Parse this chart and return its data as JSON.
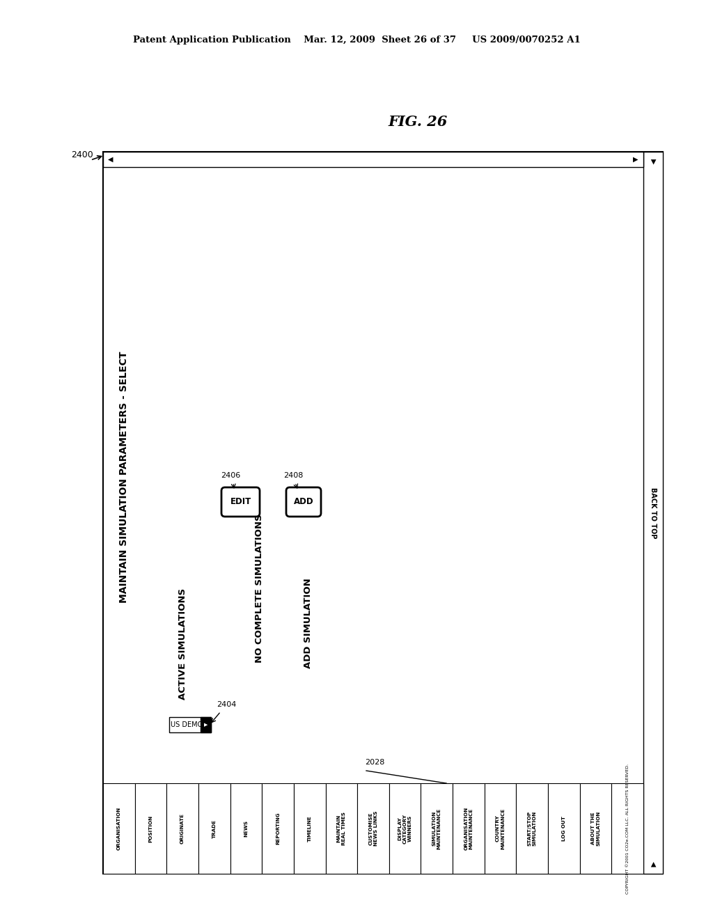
{
  "bg_color": "#ffffff",
  "header_text": "Patent Application Publication    Mar. 12, 2009  Sheet 26 of 37     US 2009/0070252 A1",
  "fig_label": "FIG. 26",
  "arrow_label": "2400",
  "title_text": "MAINTAIN SIMULATION PARAMETERS - SELECT",
  "active_sims_label": "ACTIVE SIMULATIONS",
  "dropdown_text": "US DEMO",
  "dropdown_label": "2404",
  "edit_button_text": "EDIT",
  "edit_label": "2406",
  "no_complete_text": "NO COMPLETE SIMULATIONS",
  "add_sim_text": "ADD SIMULATION",
  "add_button_text": "ADD",
  "add_label": "2408",
  "label_2028": "2028",
  "nav_items": [
    "ORGANISATION",
    "POSITION",
    "ORIGINATE",
    "TRADE",
    "NEWS",
    "REPORTING",
    "TIMELINE",
    "MAINTAIN\nREAL TIMES",
    "CUSTOMISE\nNEWS LINKS",
    "DISPLAY\nCATEGORY\nWINNERS",
    "SIMULATION\nMAINTENANCE",
    "ORGANISATION\nMAINTENANCE",
    "COUNTRY\nMAINTENANCE",
    "START/STOP\nSIMULATION",
    "LOG OUT"
  ],
  "about_sim": "ABOUT THE\nSIMULATION",
  "copyright_text": "COPYRIGHT ©2001 CO2e.COM LLC. ALL RIGHTS RESERVED.",
  "scrollbar_text": "BACK TO TOP"
}
